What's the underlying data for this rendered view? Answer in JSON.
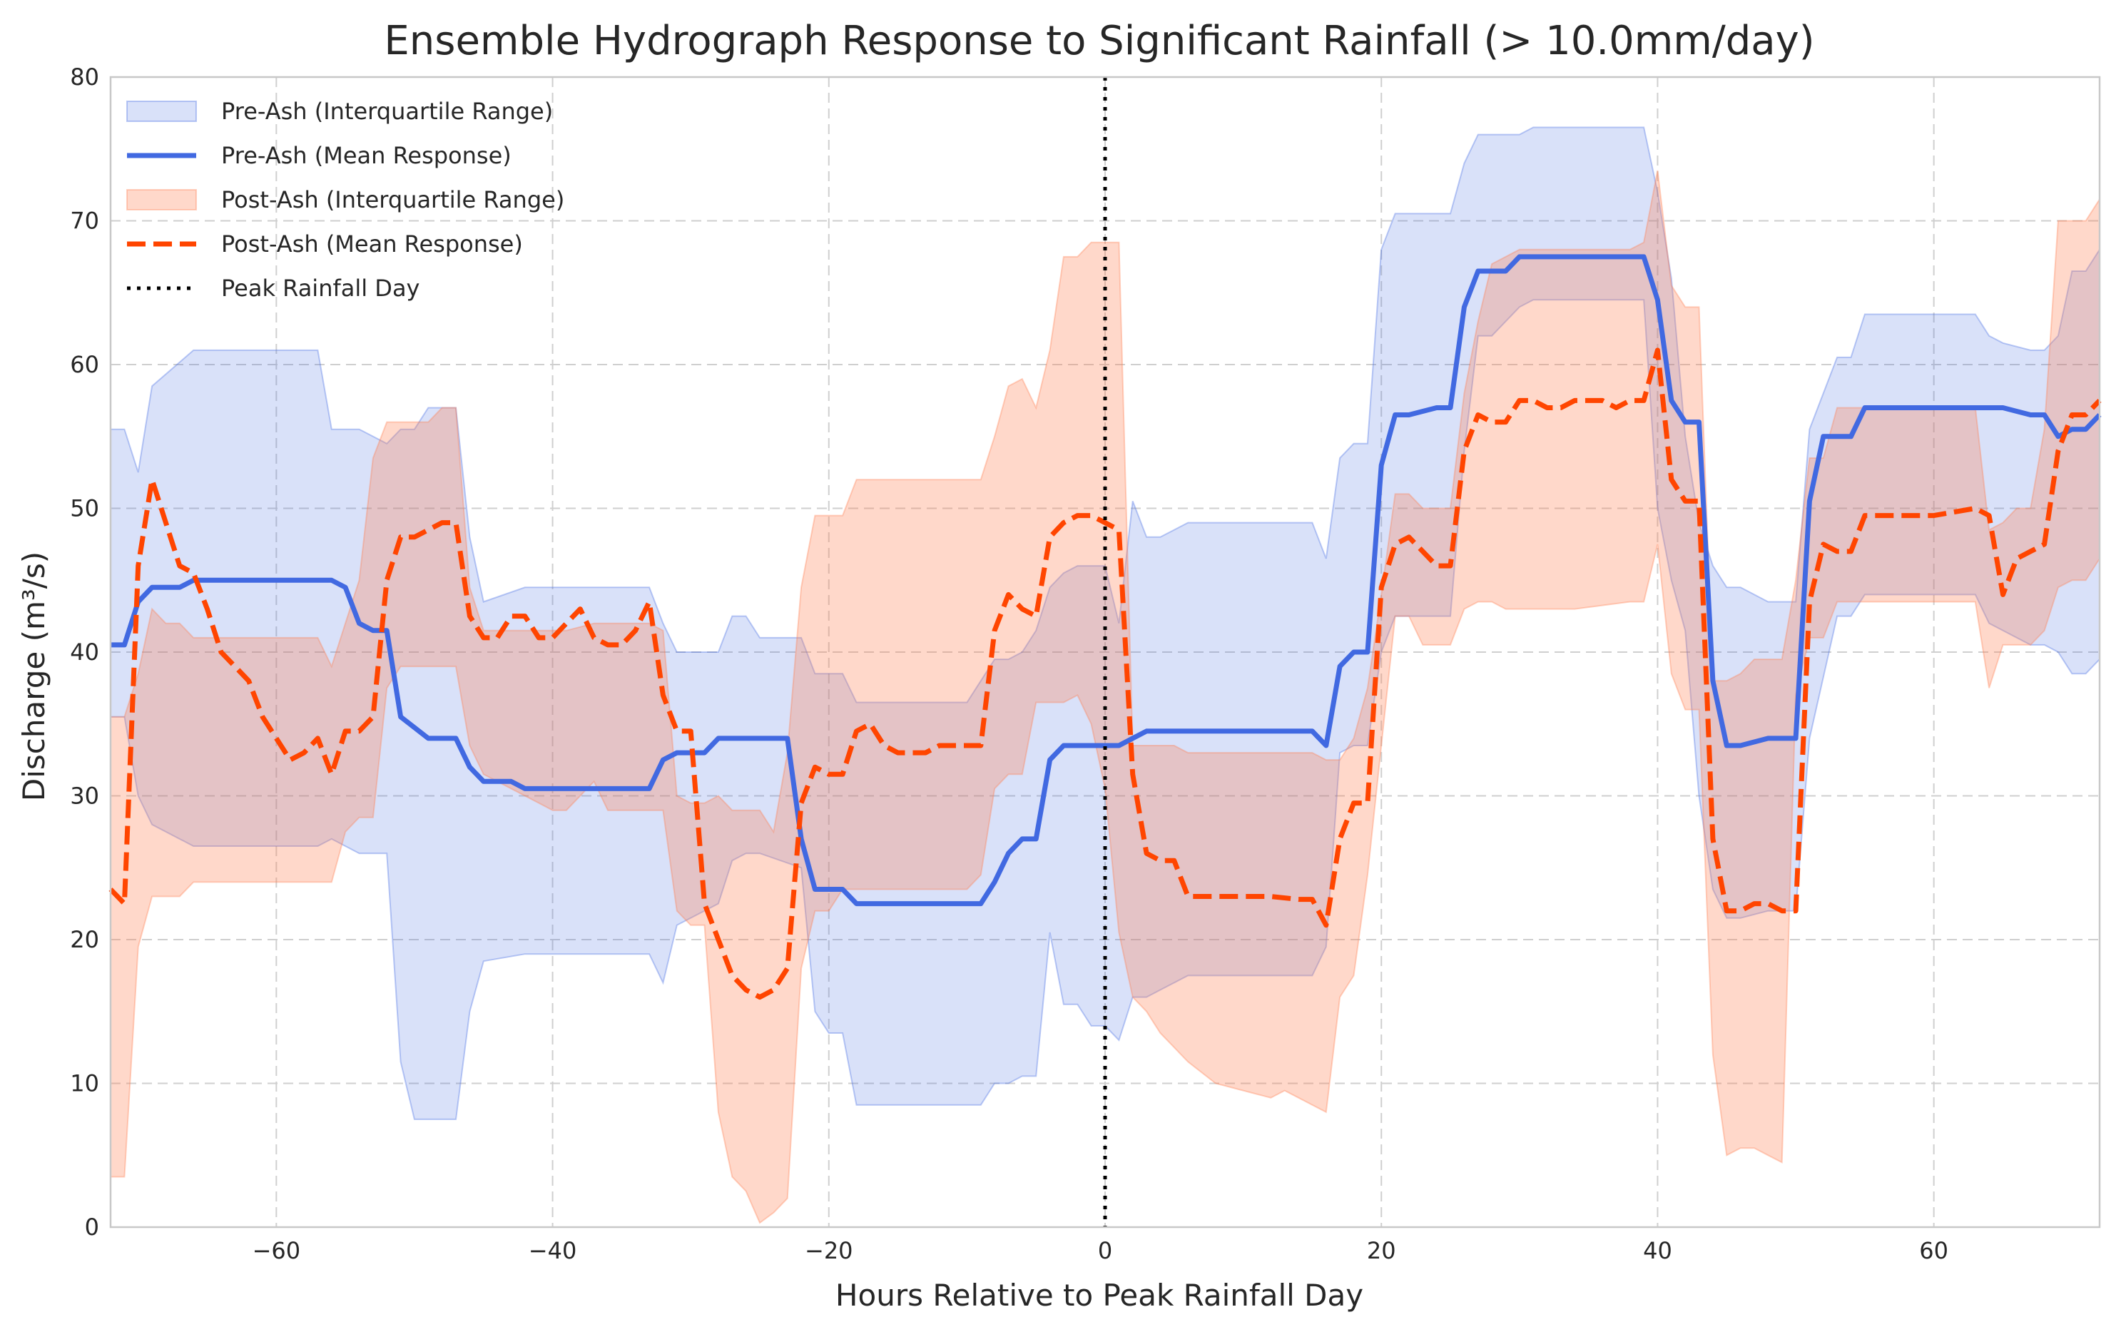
{
  "chart_data": {
    "type": "area",
    "title": "Ensemble Hydrograph Response to Significant Rainfall (> 10.0mm/day)",
    "xlabel": "Hours Relative to Peak Rainfall Day",
    "ylabel": "Discharge (m³/s)",
    "xlim": [
      -72,
      72
    ],
    "ylim": [
      0,
      80
    ],
    "xticks": [
      -60,
      -40,
      -20,
      0,
      20,
      40,
      60
    ],
    "yticks": [
      0,
      10,
      20,
      30,
      40,
      50,
      60,
      70,
      80
    ],
    "grid": true,
    "legend_position": "top-left",
    "vline": {
      "x": 0,
      "name": "Peak Rainfall Day",
      "color": "#000000"
    },
    "series": [
      {
        "name": "Pre-Ash (Interquartile Range)",
        "kind": "band",
        "color": "#4169E1",
        "x": [
          -72,
          -71,
          -70,
          -69,
          -66,
          -57,
          -56,
          -54,
          -52,
          -51,
          -50,
          -49,
          -47,
          -46,
          -45,
          -42,
          -33,
          -32,
          -31,
          -28,
          -27,
          -26,
          -25,
          -22,
          -21,
          -20,
          -19,
          -18,
          -10,
          -9,
          -8,
          -7,
          -6,
          -5,
          -4,
          -3,
          -2,
          -1,
          0,
          1,
          2,
          3,
          4,
          6,
          8,
          12,
          15,
          16,
          17,
          18,
          19,
          20,
          21,
          22,
          24,
          25,
          26,
          27,
          28,
          30,
          31,
          35,
          38,
          39,
          40,
          41,
          42,
          43,
          44,
          45,
          46,
          48,
          50,
          51,
          53,
          54,
          55,
          58,
          62,
          63,
          64,
          65,
          67,
          68,
          69,
          70,
          71,
          72
        ],
        "upper": [
          55.5,
          55.5,
          52.5,
          58.5,
          61.0,
          61.0,
          55.5,
          55.5,
          54.5,
          55.5,
          55.5,
          57.0,
          57.0,
          48.0,
          43.5,
          44.5,
          44.5,
          42.0,
          40.0,
          40.0,
          42.5,
          42.5,
          41.0,
          41.0,
          38.5,
          38.5,
          38.5,
          36.5,
          36.5,
          38.0,
          39.5,
          39.5,
          40.0,
          41.5,
          44.5,
          45.5,
          46.0,
          46.0,
          46.0,
          42.0,
          50.5,
          48.0,
          48.0,
          49.0,
          49.0,
          49.0,
          49.0,
          46.5,
          53.5,
          54.5,
          54.5,
          68.0,
          70.5,
          70.5,
          70.5,
          70.5,
          74.0,
          76.0,
          76.0,
          76.0,
          76.5,
          76.5,
          76.5,
          76.5,
          72.0,
          66.0,
          55.0,
          49.0,
          46.0,
          44.5,
          44.5,
          43.5,
          43.5,
          55.5,
          60.5,
          60.5,
          63.5,
          63.5,
          63.5,
          63.5,
          62.0,
          61.5,
          61.0,
          61.0,
          62.0,
          66.5,
          66.5,
          68.0
        ],
        "lower": [
          35.5,
          35.5,
          30.0,
          28.0,
          26.5,
          26.5,
          27.0,
          26.0,
          26.0,
          11.5,
          7.5,
          7.5,
          7.5,
          15.0,
          18.5,
          19.0,
          19.0,
          17.0,
          21.0,
          22.5,
          25.5,
          26.0,
          26.0,
          25.0,
          15.0,
          13.5,
          13.5,
          8.5,
          8.5,
          8.5,
          10.0,
          10.0,
          10.5,
          10.5,
          20.5,
          15.5,
          15.5,
          14.0,
          14.0,
          13.0,
          16.0,
          16.0,
          16.5,
          17.5,
          17.5,
          17.5,
          17.5,
          19.5,
          33.0,
          33.5,
          33.5,
          40.0,
          42.5,
          42.5,
          42.5,
          42.5,
          54.0,
          62.0,
          62.0,
          64.0,
          64.5,
          64.5,
          64.5,
          64.5,
          50.0,
          45.0,
          41.5,
          30.0,
          23.5,
          21.5,
          21.5,
          22.0,
          22.0,
          34.0,
          42.5,
          42.5,
          44.0,
          44.0,
          44.0,
          44.0,
          42.0,
          41.5,
          40.5,
          40.5,
          40.0,
          38.5,
          38.5,
          39.5
        ]
      },
      {
        "name": "Pre-Ash (Mean Response)",
        "kind": "line",
        "style": "solid",
        "color": "#4169E1",
        "x": [
          -72,
          -71,
          -70,
          -69,
          -67,
          -66,
          -57,
          -56,
          -55,
          -54,
          -53,
          -52,
          -51,
          -49,
          -47,
          -46,
          -45,
          -43,
          -42,
          -33,
          -32,
          -31,
          -29,
          -28,
          -26,
          -23,
          -22,
          -21,
          -19,
          -18,
          -10,
          -9,
          -8,
          -7,
          -6,
          -5,
          -4,
          -3,
          -2,
          -1,
          0,
          1,
          2,
          3,
          4,
          6,
          8,
          12,
          15,
          16,
          17,
          18,
          19,
          20,
          21,
          22,
          24,
          25,
          26,
          27,
          28,
          29,
          30,
          31,
          38,
          39,
          40,
          41,
          42,
          43,
          44,
          45,
          46,
          48,
          50,
          51,
          52,
          53,
          54,
          55,
          58,
          63,
          64,
          65,
          67,
          68,
          69,
          70,
          71,
          72
        ],
        "values": [
          40.5,
          40.5,
          43.5,
          44.5,
          44.5,
          45.0,
          45.0,
          45.0,
          44.5,
          42.0,
          41.5,
          41.5,
          35.5,
          34.0,
          34.0,
          32.0,
          31.0,
          31.0,
          30.5,
          30.5,
          32.5,
          33.0,
          33.0,
          34.0,
          34.0,
          34.0,
          27.0,
          23.5,
          23.5,
          22.5,
          22.5,
          22.5,
          24.0,
          26.0,
          27.0,
          27.0,
          32.5,
          33.5,
          33.5,
          33.5,
          33.5,
          33.5,
          34.0,
          34.5,
          34.5,
          34.5,
          34.5,
          34.5,
          34.5,
          33.5,
          39.0,
          40.0,
          40.0,
          53.0,
          56.5,
          56.5,
          57.0,
          57.0,
          64.0,
          66.5,
          66.5,
          66.5,
          67.5,
          67.5,
          67.5,
          67.5,
          64.5,
          57.5,
          56.0,
          56.0,
          38.0,
          33.5,
          33.5,
          34.0,
          34.0,
          50.5,
          55.0,
          55.0,
          55.0,
          57.0,
          57.0,
          57.0,
          57.0,
          57.0,
          56.5,
          56.5,
          55.0,
          55.5,
          55.5,
          56.5
        ]
      },
      {
        "name": "Post-Ash (Interquartile Range)",
        "kind": "band",
        "color": "#FF7F50",
        "x": [
          -72,
          -71,
          -70,
          -69,
          -68,
          -67,
          -66,
          -60,
          -59,
          -57,
          -56,
          -55,
          -54,
          -53,
          -52,
          -51,
          -50,
          -49,
          -48,
          -47,
          -46,
          -45,
          -40,
          -39,
          -37,
          -36,
          -33,
          -32,
          -31,
          -30,
          -29,
          -28,
          -27,
          -26,
          -25,
          -24,
          -23,
          -22,
          -21,
          -20,
          -19,
          -18,
          -10,
          -9,
          -8,
          -7,
          -6,
          -5,
          -4,
          -3,
          -2,
          -1,
          0,
          1,
          2,
          3,
          4,
          5,
          6,
          8,
          10,
          12,
          13,
          14,
          15,
          16,
          17,
          18,
          19,
          20,
          21,
          22,
          23,
          24,
          25,
          26,
          27,
          28,
          29,
          30,
          34,
          38,
          39,
          40,
          41,
          42,
          43,
          44,
          45,
          46,
          47,
          48,
          49,
          50,
          51,
          52,
          53,
          54,
          55,
          62,
          63,
          64,
          65,
          66,
          67,
          68,
          69,
          70,
          71,
          72
        ],
        "upper": [
          35.5,
          35.5,
          38.5,
          43.0,
          42.0,
          42.0,
          41.0,
          41.0,
          41.0,
          41.0,
          39.0,
          42.0,
          45.0,
          53.5,
          56.0,
          56.0,
          56.0,
          56.0,
          57.0,
          57.0,
          44.5,
          41.5,
          41.5,
          41.5,
          42.0,
          42.0,
          42.0,
          41.5,
          30.0,
          29.5,
          29.5,
          30.0,
          29.0,
          29.0,
          29.0,
          27.5,
          33.0,
          44.5,
          49.5,
          49.5,
          49.5,
          52.0,
          52.0,
          52.0,
          55.0,
          58.5,
          59.0,
          57.0,
          61.0,
          67.5,
          67.5,
          68.5,
          68.5,
          68.5,
          33.5,
          33.5,
          33.5,
          33.5,
          33.0,
          33.0,
          33.0,
          33.0,
          33.0,
          33.0,
          33.0,
          32.5,
          32.5,
          34.0,
          37.5,
          44.0,
          51.0,
          51.0,
          50.0,
          50.0,
          50.0,
          58.0,
          63.0,
          67.0,
          67.5,
          68.0,
          68.0,
          68.0,
          68.5,
          73.5,
          65.5,
          64.0,
          64.0,
          38.0,
          38.0,
          38.5,
          39.5,
          39.5,
          39.5,
          45.0,
          53.5,
          53.5,
          57.0,
          57.0,
          57.0,
          57.0,
          57.0,
          48.5,
          49.0,
          50.0,
          50.0,
          55.5,
          70.0,
          70.0,
          70.0,
          71.5
        ],
        "lower": [
          3.5,
          3.5,
          19.5,
          23.0,
          23.0,
          23.0,
          24.0,
          24.0,
          24.0,
          24.0,
          24.0,
          27.5,
          28.5,
          28.5,
          37.5,
          39.0,
          39.0,
          39.0,
          39.0,
          39.0,
          33.5,
          31.5,
          29.0,
          29.0,
          31.0,
          29.0,
          29.0,
          29.0,
          22.0,
          21.0,
          21.0,
          8.0,
          3.5,
          2.5,
          0.3,
          1.0,
          2.0,
          18.0,
          22.0,
          22.0,
          23.5,
          23.5,
          23.5,
          24.5,
          30.5,
          31.5,
          31.5,
          36.5,
          36.5,
          36.5,
          37.0,
          35.0,
          30.5,
          20.5,
          16.0,
          15.0,
          13.5,
          12.5,
          11.5,
          10.0,
          9.5,
          9.0,
          9.5,
          9.0,
          8.5,
          8.0,
          16.0,
          17.5,
          24.5,
          33.5,
          42.5,
          42.5,
          40.5,
          40.5,
          40.5,
          43.0,
          43.5,
          43.5,
          43.0,
          43.0,
          43.0,
          43.5,
          43.5,
          47.5,
          38.5,
          36.0,
          36.0,
          12.0,
          5.0,
          5.5,
          5.5,
          5.0,
          4.5,
          37.0,
          41.0,
          41.0,
          43.5,
          43.5,
          43.5,
          43.5,
          43.5,
          37.5,
          40.5,
          40.5,
          40.5,
          41.5,
          44.5,
          45.0,
          45.0,
          46.5
        ]
      },
      {
        "name": "Post-Ash (Mean Response)",
        "kind": "line",
        "style": "dashed",
        "color": "#FF4500",
        "x": [
          -72,
          -71,
          -70,
          -69,
          -68,
          -67,
          -66,
          -65,
          -64,
          -63,
          -62,
          -61,
          -60,
          -59,
          -58,
          -57,
          -56,
          -55,
          -54,
          -53,
          -52,
          -51,
          -50,
          -49,
          -48,
          -47,
          -46,
          -45,
          -44,
          -43,
          -42,
          -41,
          -40,
          -39,
          -38,
          -37,
          -36,
          -35,
          -34,
          -33,
          -32,
          -31,
          -30,
          -29,
          -28,
          -27,
          -26,
          -25,
          -24,
          -23,
          -22,
          -21,
          -20,
          -19,
          -18,
          -17,
          -16,
          -15,
          -14,
          -13,
          -12,
          -11,
          -10,
          -9,
          -8,
          -7,
          -6,
          -5,
          -4,
          -3,
          -2,
          -1,
          0,
          1,
          2,
          3,
          4,
          5,
          6,
          8,
          10,
          12,
          14,
          15,
          16,
          17,
          18,
          19,
          20,
          21,
          22,
          23,
          24,
          25,
          26,
          27,
          28,
          29,
          30,
          31,
          32,
          33,
          34,
          35,
          36,
          37,
          38,
          39,
          40,
          41,
          42,
          43,
          44,
          45,
          46,
          47,
          48,
          49,
          50,
          51,
          52,
          53,
          54,
          55,
          58,
          60,
          63,
          64,
          65,
          66,
          67,
          68,
          69,
          70,
          71,
          72
        ],
        "values": [
          23.5,
          22.5,
          46.0,
          52.0,
          49.0,
          46.0,
          45.5,
          43.0,
          40.0,
          39.0,
          38.0,
          35.5,
          34.0,
          32.5,
          33.0,
          34.0,
          31.5,
          34.5,
          34.5,
          35.5,
          45.0,
          48.0,
          48.0,
          48.5,
          49.0,
          49.0,
          42.5,
          41.0,
          41.0,
          42.5,
          42.5,
          41.0,
          41.0,
          42.0,
          43.0,
          41.0,
          40.5,
          40.5,
          41.5,
          43.5,
          37.0,
          34.5,
          34.5,
          22.5,
          20.0,
          17.5,
          16.5,
          16.0,
          16.5,
          18.0,
          29.5,
          32.0,
          31.5,
          31.5,
          34.5,
          35.0,
          33.5,
          33.0,
          33.0,
          33.0,
          33.5,
          33.5,
          33.5,
          33.5,
          41.5,
          44.0,
          43.0,
          42.5,
          48.0,
          49.0,
          49.5,
          49.5,
          49.0,
          48.5,
          31.5,
          26.0,
          25.5,
          25.5,
          23.0,
          23.0,
          23.0,
          23.0,
          22.8,
          22.8,
          21.0,
          27.0,
          29.5,
          29.5,
          44.5,
          47.5,
          48.0,
          47.0,
          46.0,
          46.0,
          54.0,
          56.5,
          56.0,
          56.0,
          57.5,
          57.5,
          57.0,
          57.0,
          57.5,
          57.5,
          57.5,
          57.0,
          57.5,
          57.5,
          61.0,
          52.0,
          50.5,
          50.5,
          27.0,
          22.0,
          22.0,
          22.5,
          22.5,
          22.0,
          22.0,
          43.5,
          47.5,
          47.0,
          47.0,
          49.5,
          49.5,
          49.5,
          50.0,
          49.5,
          44.0,
          46.5,
          47.0,
          47.5,
          54.0,
          56.5,
          56.5,
          57.5
        ]
      }
    ]
  }
}
